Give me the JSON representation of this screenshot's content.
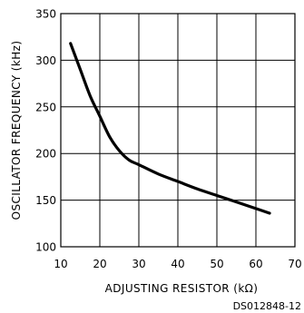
{
  "chart_data": {
    "type": "line",
    "title": "",
    "xlabel": "ADJUSTING RESISTOR (kΩ)",
    "ylabel": "OSCILLATOR FREQUENCY (kHz)",
    "xlim": [
      10,
      70
    ],
    "ylim": [
      100,
      350
    ],
    "xticks": [
      10,
      20,
      30,
      40,
      50,
      60,
      70
    ],
    "yticks": [
      100,
      150,
      200,
      250,
      300,
      350
    ],
    "grid": true,
    "series": [
      {
        "x": [
          12.5,
          15,
          17.5,
          20,
          22.5,
          25,
          27.5,
          30,
          35,
          40,
          45,
          50,
          55,
          60,
          63.5
        ],
        "y": [
          318,
          290,
          262,
          240,
          218,
          203,
          193,
          188,
          178,
          170,
          162,
          155,
          148,
          141,
          136
        ]
      }
    ]
  },
  "footer": {
    "code": "DS012848-12"
  }
}
